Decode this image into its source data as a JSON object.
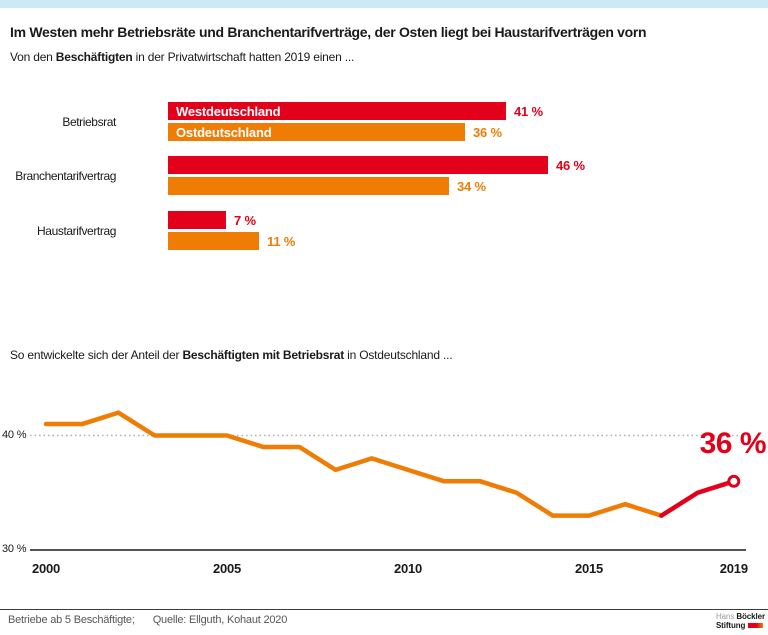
{
  "colors": {
    "red": "#e2001a",
    "orange": "#ef7d05",
    "topbar_blue": "#cde9f3",
    "text": "#1a1a1a",
    "muted_gray": "#575756",
    "grid_gray": "#b2b2b2",
    "logo_gray": "#9d9d9c"
  },
  "header": {
    "title": "Im Westen mehr Betriebsräte und Branchentarifverträge, der Osten liegt bei Haustarifverträgen vorn",
    "subtitle": {
      "pre": "Von den ",
      "bold": "Beschäftigten",
      "post": " in der Privatwirtschaft hatten 2019 einen ..."
    }
  },
  "section2": {
    "pre": "So entwickelte sich der Anteil der ",
    "bold": "Beschäftigten mit Betriebsrat",
    "post": " in Ostdeutschland ..."
  },
  "chart_data": [
    {
      "type": "bar",
      "title": "Von den Beschäftigten in der Privatwirtschaft hatten 2019 einen ...",
      "categories": [
        "Betriebsrat",
        "Branchentarifvertrag",
        "Haustarifvertrag"
      ],
      "series": [
        {
          "name": "Westdeutschland",
          "color": "#e2001a",
          "values": [
            41,
            46,
            7
          ]
        },
        {
          "name": "Ostdeutschland",
          "color": "#ef7d05",
          "values": [
            36,
            34,
            11
          ]
        }
      ],
      "value_suffix": " %",
      "xlim": [
        0,
        50
      ],
      "legend_position": "inside-first-bars"
    },
    {
      "type": "line",
      "title": "So entwickelte sich der Anteil der Beschäftigten mit Betriebsrat in Ostdeutschland ...",
      "x": [
        2000,
        2001,
        2002,
        2003,
        2004,
        2005,
        2006,
        2007,
        2008,
        2009,
        2010,
        2011,
        2012,
        2013,
        2014,
        2015,
        2016,
        2017,
        2018,
        2019
      ],
      "values": [
        41,
        41,
        42,
        40,
        40,
        40,
        39,
        39,
        37,
        38,
        37,
        36,
        36,
        35,
        33,
        33,
        34,
        33,
        35,
        36
      ],
      "series_color": "#ef7d05",
      "highlight_color": "#e2001a",
      "highlight_from_x": 2017,
      "end_label": "36 %",
      "end_marker": "open-circle",
      "x_ticks": [
        2000,
        2005,
        2010,
        2015,
        2019
      ],
      "y_ticks": [
        {
          "value": 40,
          "label": "40 %",
          "style": "dotted"
        },
        {
          "value": 30,
          "label": "30 %",
          "style": "solid"
        }
      ],
      "ylim": [
        30,
        43
      ],
      "grid": "y-dotted-at-40-only"
    }
  ],
  "footer": {
    "note": "Betriebe ab 5 Beschäftigte;",
    "source": "Quelle: Ellguth, Kohaut 2020"
  },
  "logo": {
    "line1_light": "Hans",
    "line1_bold": "Böckler",
    "line2_bold": "Stiftung"
  }
}
